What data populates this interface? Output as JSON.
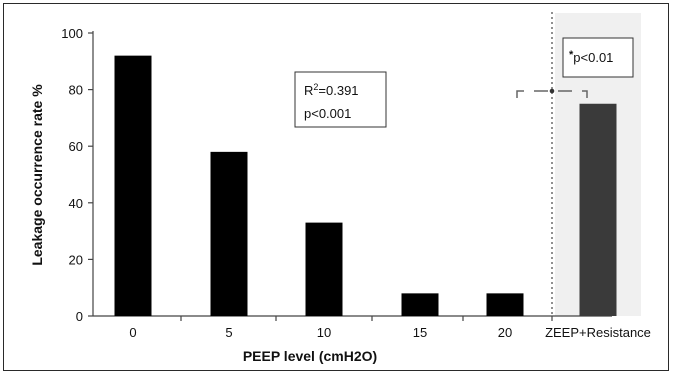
{
  "chart_data": {
    "type": "bar",
    "categories": [
      "0",
      "5",
      "10",
      "15",
      "20",
      "ZEEP+Resistance"
    ],
    "values": [
      92,
      58,
      33,
      8,
      8,
      75
    ],
    "title": "",
    "xlabel": "PEEP level (cmH2O)",
    "ylabel": "Leakage occurrence rate %",
    "ylim": [
      0,
      100
    ],
    "yticks": [
      "0",
      "20",
      "40",
      "60",
      "80",
      "100"
    ],
    "grid": false,
    "colors": {
      "bar": "#000000",
      "highlight_bar": "#3a3a3a",
      "highlight_background": "#f0f0f0"
    },
    "annotations": {
      "regression_r2_label": "R",
      "regression_r2_sup": "2",
      "regression_r2_value": "=0.391",
      "regression_p": "p<0.001",
      "comparison_star": "*",
      "comparison_p": "p<0.01"
    }
  }
}
